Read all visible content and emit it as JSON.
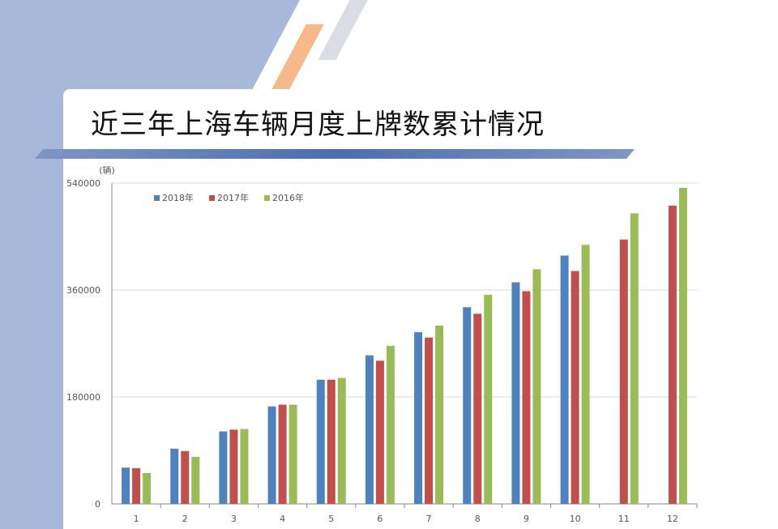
{
  "page": {
    "title": "近三年上海车辆月度上牌数累计情况"
  },
  "colors": {
    "background_band": "#a7b8d8",
    "title_bar": "#4b6db1",
    "accent_stripe": "#f6b98a"
  },
  "chart_data": {
    "type": "bar",
    "unit_label": "(辆)",
    "categories": [
      "1",
      "2",
      "3",
      "4",
      "5",
      "6",
      "7",
      "8",
      "9",
      "10",
      "11",
      "12"
    ],
    "ylim": [
      0,
      540000
    ],
    "yticks": [
      {
        "value": 0,
        "label": "0"
      },
      {
        "value": 180000,
        "label": "180000"
      },
      {
        "value": 360000,
        "label": "360000"
      },
      {
        "value": 540000,
        "label": "540000"
      }
    ],
    "grid": true,
    "legend": "top-left",
    "series": [
      {
        "name": "2018年",
        "color": "#4f81bd",
        "values": [
          61000,
          93000,
          122000,
          164000,
          209000,
          250000,
          289000,
          331000,
          373000,
          418000,
          null,
          null
        ]
      },
      {
        "name": "2017年",
        "color": "#c0504d",
        "values": [
          60000,
          89000,
          125000,
          167000,
          209000,
          241000,
          280000,
          320000,
          358000,
          392000,
          445000,
          502000
        ]
      },
      {
        "name": "2016年",
        "color": "#9bbb59",
        "values": [
          52000,
          79000,
          126000,
          167000,
          212000,
          266000,
          300000,
          352000,
          395000,
          436000,
          489000,
          532000
        ]
      }
    ]
  }
}
